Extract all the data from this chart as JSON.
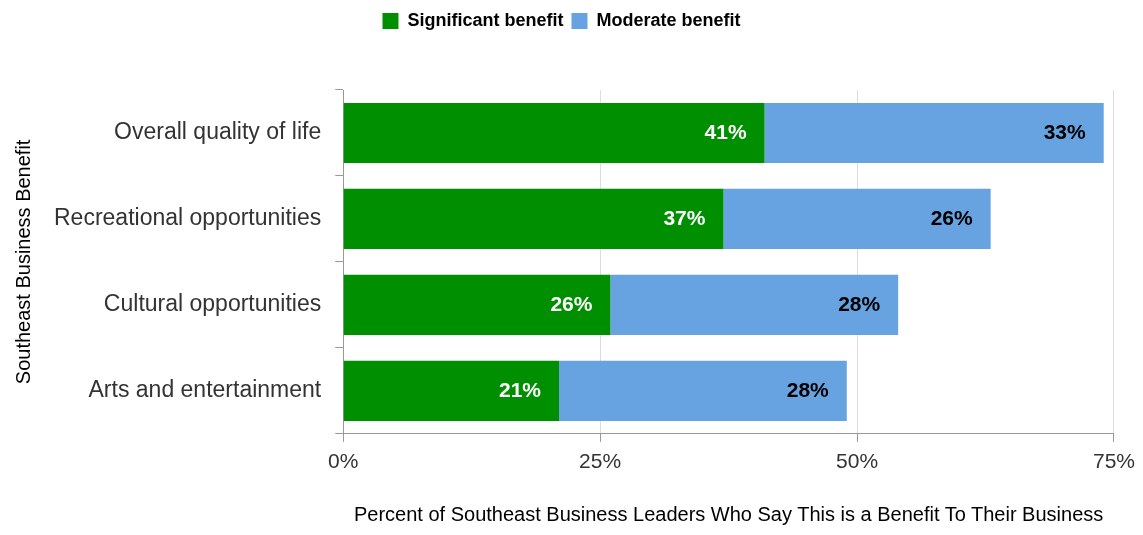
{
  "chart_data": {
    "type": "bar",
    "orientation": "horizontal",
    "stacked": true,
    "xlabel": "Percent of Southeast Business Leaders Who Say This is a Benefit To Their Business",
    "ylabel": "Southeast Business Benefit",
    "categories": [
      "Overall quality of life",
      "Recreational opportunities",
      "Cultural opportunities",
      "Arts and entertainment"
    ],
    "series": [
      {
        "name": "Significant benefit",
        "color": "#008f00",
        "values": [
          41,
          37,
          26,
          21
        ],
        "value_labels": [
          "41%",
          "37%",
          "26%",
          "21%"
        ]
      },
      {
        "name": "Moderate benefit",
        "color": "#66a3e0",
        "values": [
          33,
          26,
          28,
          28
        ],
        "value_labels": [
          "33%",
          "26%",
          "28%",
          "28%"
        ]
      }
    ],
    "xlim": [
      0,
      75
    ],
    "xticks": [
      {
        "value": 0,
        "label": "0%"
      },
      {
        "value": 25,
        "label": "25%"
      },
      {
        "value": 50,
        "label": "50%"
      },
      {
        "value": 75,
        "label": "75%"
      }
    ],
    "grid": "x",
    "legend": "top"
  }
}
